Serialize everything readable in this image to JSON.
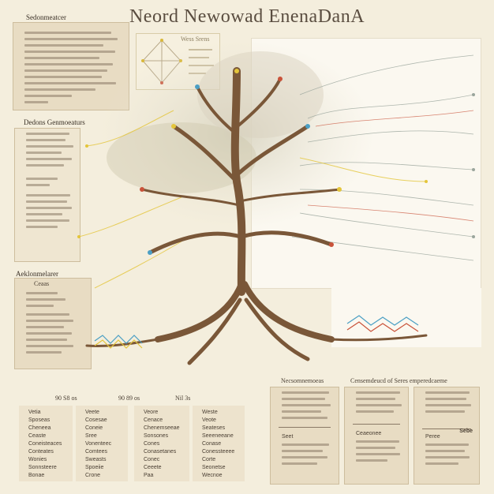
{
  "title": "Neord Newowad EnenaDanA",
  "top_left_panel": {
    "heading": "Sedonmeatcer"
  },
  "left_panel_2": {
    "heading": "Dedons Genmoeaturs"
  },
  "left_panel_3": {
    "heading": "Aeklonmelarer",
    "subheading": "Ceaas"
  },
  "inset_box": {
    "heading": "Wess Srens"
  },
  "bottom_headers": [
    "90 S8 os",
    "90 89 os",
    "Nil 3s"
  ],
  "bottom_columns": [
    [
      "Vetia",
      "Sposeas",
      "Cheneea",
      "Ceaste",
      "Coneisteaces",
      "Conteates",
      "Wonies",
      "Sonnsteere",
      "Bonae"
    ],
    [
      "Veete",
      "Cosesae",
      "Coneie",
      "Sree",
      "Vonenteec",
      "Comtees",
      "Sweasts",
      "Spoeiie",
      "Crone"
    ],
    [
      "Veore",
      "Cenace",
      "Chenemseeae",
      "Sonsones",
      "Cones",
      "Conasetanes",
      "Conec",
      "Ceeete",
      "Paa"
    ],
    [
      "Weste",
      "Veote",
      "Seateses",
      "Seeeneeane",
      "Conase",
      "Conessteeee",
      "Corte",
      "Seonetse",
      "Wecnoe"
    ]
  ],
  "bottom_right": {
    "heading_1": "Necsomnemoeas",
    "heading_2": "Censemdeucd of Seres emperedcaeme",
    "card_labels": [
      "Seet",
      "Ceaeonee",
      "Peree"
    ],
    "card_badges": [
      "Sebe"
    ]
  },
  "colors": {
    "background": "#f4eedd",
    "panel": "#e8dcc3",
    "trunk": "#7a5738",
    "accent_yellow": "#e4c53a",
    "accent_blue": "#4b9fc4",
    "accent_red": "#c9533a"
  }
}
